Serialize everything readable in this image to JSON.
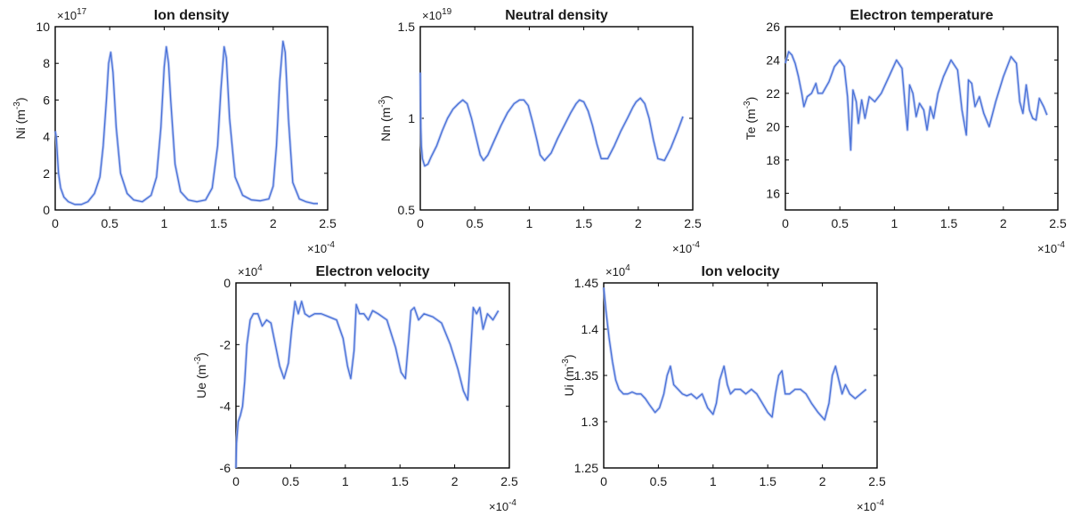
{
  "chart_data": [
    {
      "type": "line",
      "title": "Ion density",
      "ylabel": {
        "base": "Ni (m",
        "sup": "-3",
        "end": ")"
      },
      "xlim": [
        0,
        2.5
      ],
      "ylim": [
        0,
        10
      ],
      "xticks": [
        "0",
        "0.5",
        "1",
        "1.5",
        "2",
        "2.5"
      ],
      "yticks": [
        "0",
        "2",
        "4",
        "6",
        "8",
        "10"
      ],
      "y_multiplier": {
        "base": "×10",
        "sup": "17"
      },
      "x_multiplier": {
        "base": "×10",
        "sup": "-4"
      },
      "color": "#4a72d8",
      "series": [
        {
          "x": [
            0,
            0.01,
            0.02,
            0.03,
            0.05,
            0.08,
            0.12,
            0.18,
            0.24,
            0.3,
            0.36,
            0.41,
            0.44,
            0.47,
            0.49,
            0.51,
            0.53,
            0.56,
            0.6,
            0.66,
            0.72,
            0.8,
            0.88,
            0.93,
            0.97,
            1.0,
            1.02,
            1.04,
            1.06,
            1.1,
            1.15,
            1.22,
            1.3,
            1.38,
            1.44,
            1.49,
            1.52,
            1.55,
            1.57,
            1.6,
            1.65,
            1.72,
            1.8,
            1.88,
            1.96,
            2.0,
            2.03,
            2.06,
            2.09,
            2.11,
            2.14,
            2.18,
            2.24,
            2.3,
            2.37,
            2.41
          ],
          "y": [
            4.3,
            4.0,
            3.0,
            2.0,
            1.2,
            0.7,
            0.45,
            0.3,
            0.3,
            0.45,
            0.9,
            1.8,
            3.5,
            6.0,
            8.0,
            8.6,
            7.5,
            4.5,
            2.0,
            0.9,
            0.55,
            0.45,
            0.8,
            1.8,
            4.5,
            7.8,
            8.9,
            8.0,
            6.0,
            2.5,
            1.0,
            0.55,
            0.45,
            0.55,
            1.2,
            3.5,
            6.5,
            8.9,
            8.3,
            5.0,
            1.8,
            0.8,
            0.55,
            0.5,
            0.6,
            1.3,
            3.5,
            7.0,
            9.2,
            8.6,
            5.0,
            1.5,
            0.6,
            0.45,
            0.35,
            0.35
          ]
        }
      ]
    },
    {
      "type": "line",
      "title": "Neutral density",
      "ylabel": {
        "base": "Nn (m",
        "sup": "-3",
        "end": ")"
      },
      "xlim": [
        0,
        2.5
      ],
      "ylim": [
        0.5,
        1.5
      ],
      "xticks": [
        "0",
        "0.5",
        "1",
        "1.5",
        "2",
        "2.5"
      ],
      "yticks": [
        "0.5",
        "1",
        "1.5"
      ],
      "y_multiplier": {
        "base": "×10",
        "sup": "19"
      },
      "x_multiplier": {
        "base": "×10",
        "sup": "-4"
      },
      "color": "#4a72d8",
      "series": [
        {
          "x": [
            0,
            0.005,
            0.01,
            0.02,
            0.04,
            0.07,
            0.1,
            0.15,
            0.2,
            0.25,
            0.3,
            0.35,
            0.39,
            0.43,
            0.47,
            0.51,
            0.55,
            0.58,
            0.62,
            0.68,
            0.74,
            0.8,
            0.86,
            0.91,
            0.95,
            0.99,
            1.03,
            1.07,
            1.1,
            1.14,
            1.2,
            1.26,
            1.32,
            1.38,
            1.43,
            1.46,
            1.5,
            1.54,
            1.58,
            1.62,
            1.66,
            1.72,
            1.78,
            1.84,
            1.9,
            1.95,
            1.98,
            2.02,
            2.06,
            2.1,
            2.14,
            2.18,
            2.24,
            2.3,
            2.36,
            2.41
          ],
          "y": [
            1.25,
            0.95,
            0.85,
            0.78,
            0.74,
            0.75,
            0.79,
            0.85,
            0.93,
            1.0,
            1.05,
            1.08,
            1.1,
            1.08,
            1.0,
            0.9,
            0.8,
            0.77,
            0.8,
            0.88,
            0.96,
            1.03,
            1.08,
            1.1,
            1.1,
            1.07,
            0.98,
            0.88,
            0.8,
            0.77,
            0.81,
            0.89,
            0.96,
            1.03,
            1.08,
            1.1,
            1.09,
            1.04,
            0.96,
            0.86,
            0.78,
            0.78,
            0.85,
            0.93,
            1.0,
            1.06,
            1.09,
            1.11,
            1.08,
            1.0,
            0.88,
            0.78,
            0.77,
            0.84,
            0.93,
            1.01
          ]
        }
      ]
    },
    {
      "type": "line",
      "title": "Electron temperature",
      "ylabel": {
        "base": "Te (m",
        "sup": "-3",
        "end": ")"
      },
      "xlim": [
        0,
        2.5
      ],
      "ylim": [
        15,
        26
      ],
      "xticks": [
        "0",
        "0.5",
        "1",
        "1.5",
        "2",
        "2.5"
      ],
      "yticks": [
        "16",
        "18",
        "20",
        "22",
        "24",
        "26"
      ],
      "y_multiplier": {
        "base": "",
        "sup": ""
      },
      "x_multiplier": {
        "base": "×10",
        "sup": "-4"
      },
      "color": "#4a72d8",
      "series": [
        {
          "x": [
            0,
            0.03,
            0.06,
            0.09,
            0.12,
            0.15,
            0.17,
            0.2,
            0.24,
            0.28,
            0.3,
            0.34,
            0.4,
            0.45,
            0.5,
            0.54,
            0.57,
            0.6,
            0.62,
            0.65,
            0.67,
            0.7,
            0.73,
            0.77,
            0.82,
            0.88,
            0.95,
            1.02,
            1.07,
            1.1,
            1.12,
            1.14,
            1.17,
            1.2,
            1.23,
            1.27,
            1.3,
            1.33,
            1.36,
            1.4,
            1.45,
            1.52,
            1.58,
            1.62,
            1.66,
            1.68,
            1.71,
            1.74,
            1.78,
            1.82,
            1.87,
            1.93,
            2.0,
            2.07,
            2.12,
            2.15,
            2.18,
            2.21,
            2.24,
            2.27,
            2.3,
            2.33,
            2.37,
            2.4
          ],
          "y": [
            23.8,
            24.5,
            24.3,
            23.8,
            23.0,
            22.0,
            21.2,
            21.8,
            22.0,
            22.6,
            22.0,
            22.0,
            22.7,
            23.6,
            24.0,
            23.6,
            21.8,
            18.6,
            22.2,
            21.5,
            20.2,
            21.6,
            20.5,
            21.8,
            21.5,
            22.0,
            23.0,
            24.0,
            23.5,
            21.2,
            19.8,
            22.5,
            22.0,
            20.6,
            21.4,
            21.0,
            19.8,
            21.2,
            20.5,
            22.0,
            23.0,
            24.0,
            23.4,
            21.0,
            19.5,
            22.8,
            22.6,
            21.2,
            21.8,
            20.8,
            20.0,
            21.5,
            23.0,
            24.2,
            23.8,
            21.5,
            20.8,
            22.5,
            21.0,
            20.5,
            20.4,
            21.7,
            21.2,
            20.7
          ]
        }
      ]
    },
    {
      "type": "line",
      "title": "Electron velocity",
      "ylabel": {
        "base": "Ue (m",
        "sup": "-3",
        "end": ")"
      },
      "xlim": [
        0,
        2.5
      ],
      "ylim": [
        -6,
        0
      ],
      "xticks": [
        "0",
        "0.5",
        "1",
        "1.5",
        "2",
        "2.5"
      ],
      "yticks": [
        "-6",
        "-4",
        "-2",
        "0"
      ],
      "y_multiplier": {
        "base": "×10",
        "sup": "4"
      },
      "x_multiplier": {
        "base": "×10",
        "sup": "-4"
      },
      "color": "#4a72d8",
      "series": [
        {
          "x": [
            0,
            0.005,
            0.02,
            0.04,
            0.06,
            0.08,
            0.1,
            0.13,
            0.16,
            0.2,
            0.24,
            0.28,
            0.32,
            0.36,
            0.4,
            0.44,
            0.48,
            0.51,
            0.54,
            0.57,
            0.6,
            0.63,
            0.67,
            0.72,
            0.78,
            0.85,
            0.92,
            0.98,
            1.02,
            1.05,
            1.08,
            1.1,
            1.13,
            1.17,
            1.21,
            1.25,
            1.3,
            1.38,
            1.46,
            1.51,
            1.55,
            1.58,
            1.6,
            1.63,
            1.67,
            1.72,
            1.8,
            1.88,
            1.96,
            2.03,
            2.08,
            2.12,
            2.15,
            2.17,
            2.2,
            2.23,
            2.26,
            2.3,
            2.35,
            2.4
          ],
          "y": [
            -6.0,
            -5.2,
            -4.5,
            -4.3,
            -4.0,
            -3.2,
            -2.0,
            -1.2,
            -1.0,
            -1.0,
            -1.4,
            -1.2,
            -1.3,
            -2.0,
            -2.7,
            -3.1,
            -2.6,
            -1.5,
            -0.6,
            -1.0,
            -0.6,
            -1.0,
            -1.1,
            -1.0,
            -1.0,
            -1.1,
            -1.2,
            -1.8,
            -2.7,
            -3.1,
            -2.2,
            -0.7,
            -1.0,
            -1.0,
            -1.2,
            -0.9,
            -1.0,
            -1.2,
            -2.1,
            -2.9,
            -3.1,
            -1.8,
            -0.9,
            -0.8,
            -1.2,
            -1.0,
            -1.1,
            -1.3,
            -2.0,
            -2.8,
            -3.5,
            -3.8,
            -2.0,
            -0.8,
            -1.0,
            -0.8,
            -1.5,
            -1.0,
            -1.2,
            -0.9
          ]
        }
      ]
    },
    {
      "type": "line",
      "title": "Ion velocity",
      "ylabel": {
        "base": "Ui (m",
        "sup": "-3",
        "end": ")"
      },
      "xlim": [
        0,
        2.5
      ],
      "ylim": [
        1.25,
        1.45
      ],
      "xticks": [
        "0",
        "0.5",
        "1",
        "1.5",
        "2",
        "2.5"
      ],
      "yticks": [
        "1.25",
        "1.3",
        "1.35",
        "1.4",
        "1.45"
      ],
      "y_multiplier": {
        "base": "×10",
        "sup": "4"
      },
      "x_multiplier": {
        "base": "×10",
        "sup": "-4"
      },
      "color": "#4a72d8",
      "series": [
        {
          "x": [
            0,
            0.02,
            0.05,
            0.08,
            0.11,
            0.14,
            0.18,
            0.22,
            0.26,
            0.3,
            0.34,
            0.38,
            0.42,
            0.47,
            0.51,
            0.55,
            0.58,
            0.61,
            0.64,
            0.68,
            0.72,
            0.76,
            0.8,
            0.85,
            0.9,
            0.95,
            1.0,
            1.03,
            1.06,
            1.1,
            1.13,
            1.16,
            1.2,
            1.25,
            1.3,
            1.35,
            1.4,
            1.45,
            1.5,
            1.54,
            1.57,
            1.6,
            1.63,
            1.66,
            1.7,
            1.75,
            1.8,
            1.85,
            1.9,
            1.96,
            2.02,
            2.06,
            2.09,
            2.12,
            2.15,
            2.18,
            2.21,
            2.25,
            2.3,
            2.35,
            2.4
          ],
          "y": [
            1.445,
            1.42,
            1.39,
            1.365,
            1.345,
            1.335,
            1.33,
            1.33,
            1.332,
            1.33,
            1.33,
            1.325,
            1.318,
            1.31,
            1.315,
            1.33,
            1.35,
            1.36,
            1.34,
            1.335,
            1.33,
            1.328,
            1.33,
            1.325,
            1.33,
            1.315,
            1.308,
            1.32,
            1.345,
            1.36,
            1.34,
            1.33,
            1.335,
            1.335,
            1.33,
            1.335,
            1.33,
            1.32,
            1.31,
            1.305,
            1.33,
            1.35,
            1.355,
            1.33,
            1.33,
            1.335,
            1.335,
            1.33,
            1.32,
            1.31,
            1.302,
            1.32,
            1.35,
            1.36,
            1.345,
            1.33,
            1.34,
            1.33,
            1.325,
            1.33,
            1.335
          ]
        }
      ]
    }
  ]
}
